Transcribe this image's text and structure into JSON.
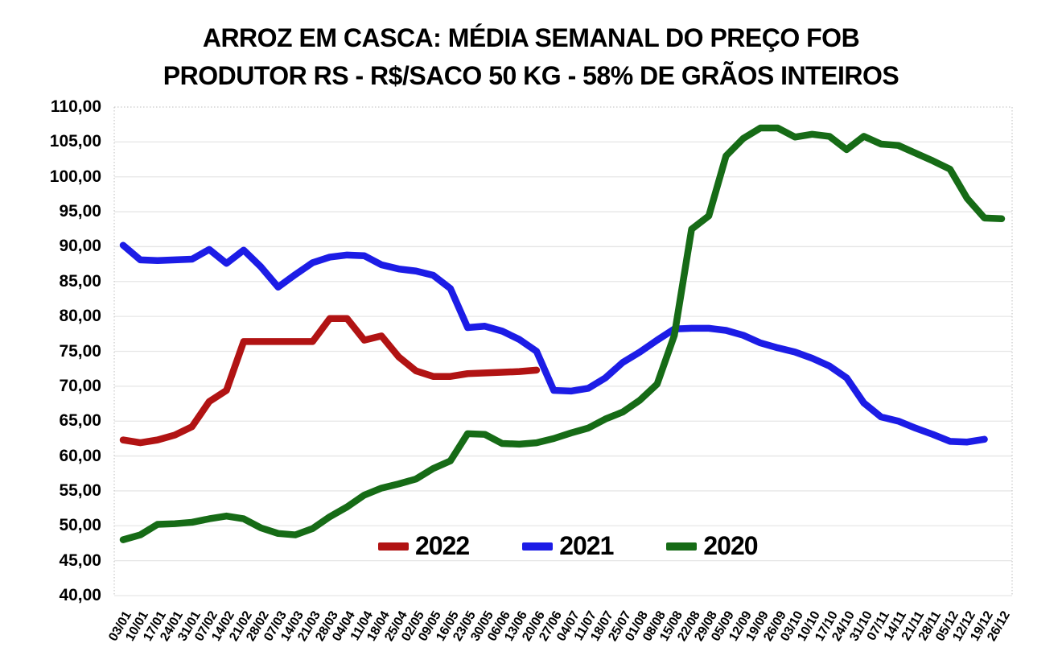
{
  "title": {
    "line1": "ARROZ EM CASCA: MÉDIA SEMANAL DO PREÇO FOB",
    "line2": "PRODUTOR RS - R$/SACO 50 KG - 58% DE GRÃOS INTEIROS"
  },
  "legend": {
    "items": [
      {
        "label": "2022",
        "color": "#B11313"
      },
      {
        "label": "2021",
        "color": "#1C1CE6"
      },
      {
        "label": "2020",
        "color": "#166B16"
      }
    ]
  },
  "axis": {
    "y_tick_labels": [
      "110,00",
      "105,00",
      "100,00",
      "95,00",
      "90,00",
      "85,00",
      "80,00",
      "75,00",
      "70,00",
      "65,00",
      "60,00",
      "55,00",
      "50,00",
      "45,00",
      "40,00"
    ]
  },
  "chart_data": {
    "type": "line",
    "title": "ARROZ EM CASCA: MÉDIA SEMANAL DO PREÇO FOB PRODUTOR RS - R$/SACO 50 KG - 58% DE GRÃOS INTEIROS",
    "xlabel": "",
    "ylabel": "",
    "ylim": [
      40,
      110
    ],
    "ytick_step": 5,
    "grid": true,
    "legend_position": "bottom-center-inside",
    "decimal_separator": "comma",
    "categories": [
      "03/01",
      "10/01",
      "17/01",
      "24/01",
      "31/01",
      "07/02",
      "14/02",
      "21/02",
      "28/02",
      "07/03",
      "14/03",
      "21/03",
      "28/03",
      "04/04",
      "11/04",
      "18/04",
      "25/04",
      "02/05",
      "09/05",
      "16/05",
      "23/05",
      "30/05",
      "06/06",
      "13/06",
      "20/06",
      "27/06",
      "04/07",
      "11/07",
      "18/07",
      "25/07",
      "01/08",
      "08/08",
      "15/08",
      "22/08",
      "29/08",
      "05/09",
      "12/09",
      "19/09",
      "26/09",
      "03/10",
      "10/10",
      "17/10",
      "24/10",
      "31/10",
      "07/11",
      "14/11",
      "21/11",
      "28/11",
      "05/12",
      "12/12",
      "19/12",
      "26/12"
    ],
    "series": [
      {
        "name": "2022",
        "color": "#B11313",
        "values": [
          62.3,
          61.9,
          62.3,
          63.0,
          64.2,
          67.8,
          69.4,
          76.4,
          76.4,
          76.4,
          76.4,
          76.4,
          79.7,
          79.7,
          76.6,
          77.2,
          74.2,
          72.2,
          71.4,
          71.4,
          71.8,
          71.9,
          72.0,
          72.1,
          72.3
        ]
      },
      {
        "name": "2021",
        "color": "#1C1CE6",
        "values": [
          90.2,
          88.1,
          88.0,
          88.1,
          88.2,
          89.6,
          87.6,
          89.5,
          87.1,
          84.2,
          86.0,
          87.7,
          88.5,
          88.8,
          88.7,
          87.4,
          86.8,
          86.5,
          85.9,
          84.0,
          78.4,
          78.6,
          77.9,
          76.7,
          75.0,
          69.4,
          69.3,
          69.7,
          71.2,
          73.4,
          74.9,
          76.6,
          78.2,
          78.3,
          78.3,
          78.0,
          77.3,
          76.2,
          75.5,
          74.9,
          74.0,
          72.9,
          71.2,
          67.6,
          65.6,
          65.0,
          64.0,
          63.1,
          62.1,
          62.0,
          62.4
        ]
      },
      {
        "name": "2020",
        "color": "#166B16",
        "values": [
          48.0,
          48.7,
          50.2,
          50.3,
          50.5,
          51.0,
          51.4,
          51.0,
          49.7,
          48.9,
          48.7,
          49.6,
          51.3,
          52.7,
          54.4,
          55.4,
          56.0,
          56.7,
          58.2,
          59.3,
          63.2,
          63.1,
          61.8,
          61.7,
          61.9,
          62.5,
          63.3,
          64.0,
          65.3,
          66.3,
          68.0,
          70.3,
          77.3,
          92.5,
          94.4,
          103.0,
          105.5,
          107.0,
          107.0,
          105.7,
          106.1,
          105.8,
          103.9,
          105.8,
          104.7,
          104.5,
          103.4,
          102.3,
          101.1,
          96.9,
          94.1,
          94.0
        ]
      }
    ]
  }
}
